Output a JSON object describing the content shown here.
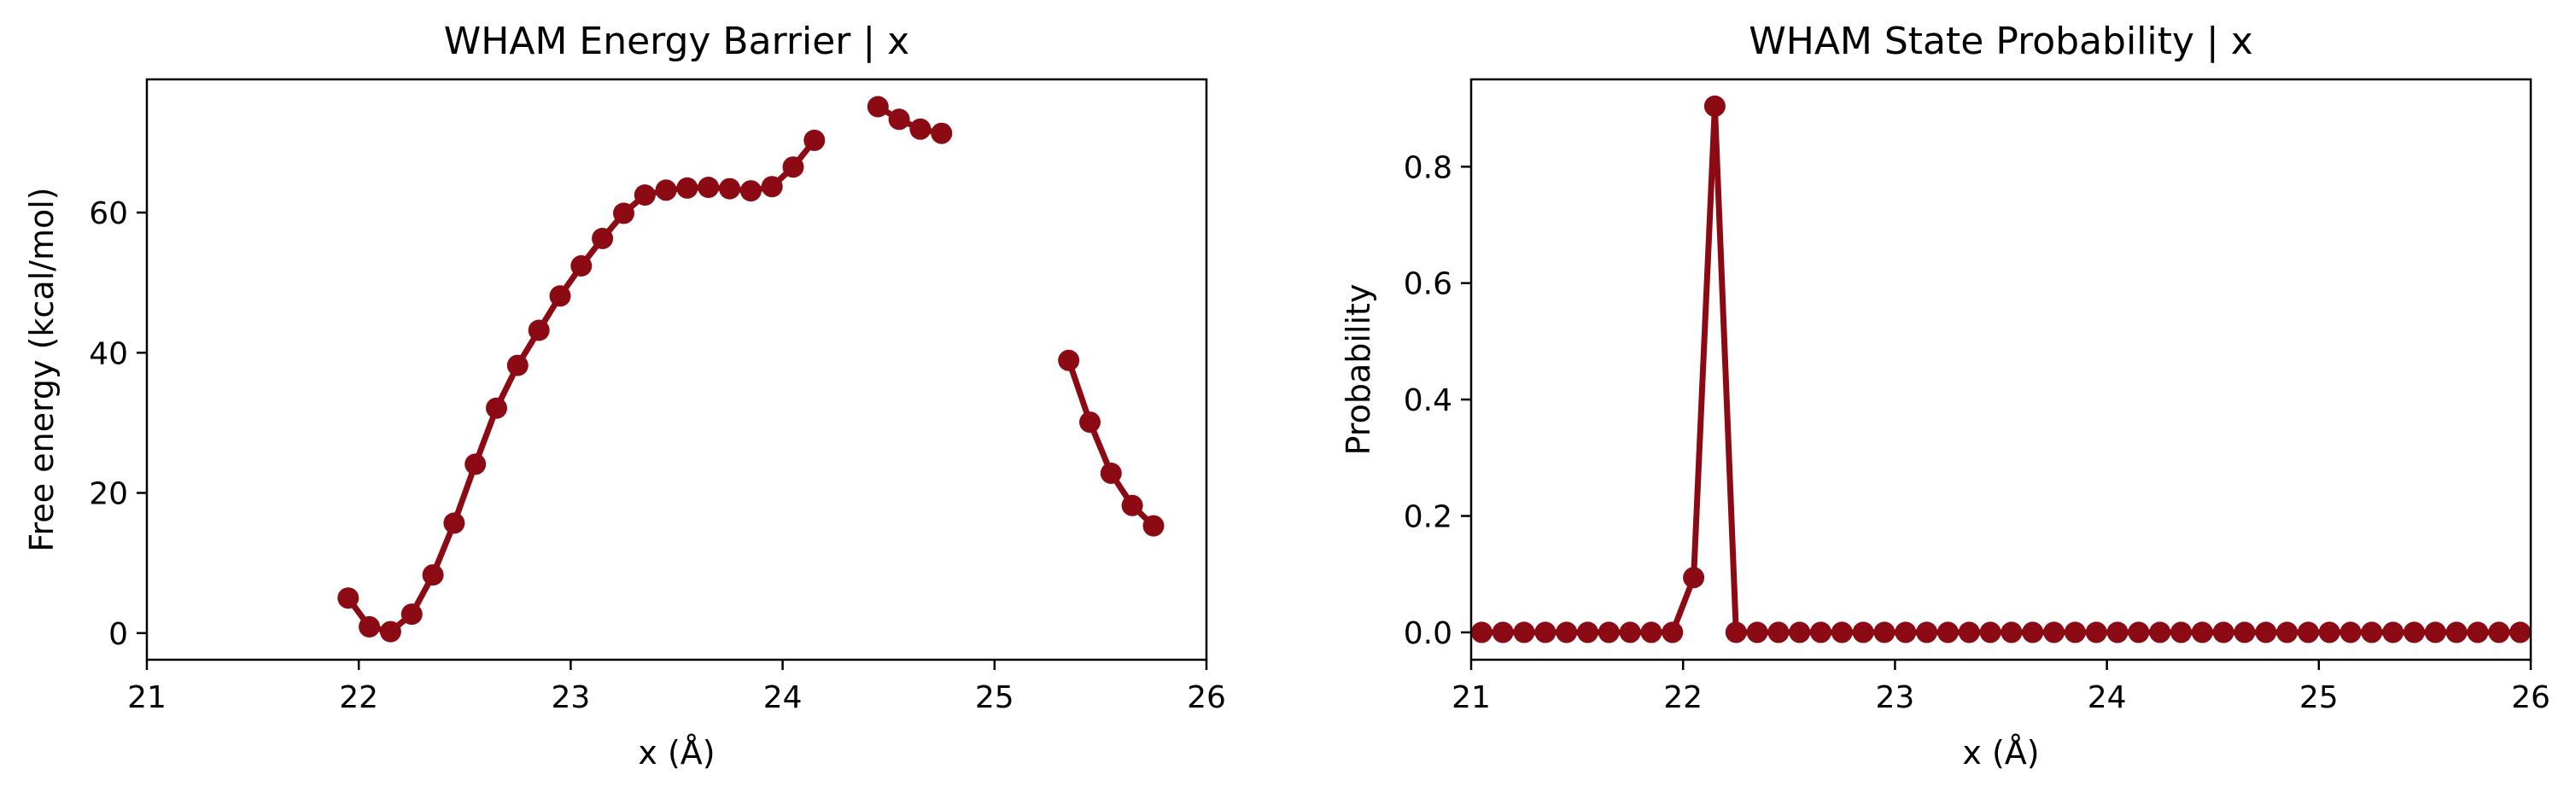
{
  "colors": {
    "series": "#8B0A13",
    "axes": "#000000",
    "background": "#ffffff"
  },
  "chart_data": [
    {
      "type": "line",
      "title": "WHAM Energy Barrier | x",
      "xlabel": "x (Å)",
      "ylabel": "Free energy (kcal/mol)",
      "xlim": [
        21,
        26
      ],
      "ylim": [
        -3.8,
        79
      ],
      "xticks": [
        21,
        22,
        23,
        24,
        25,
        26
      ],
      "yticks": [
        0,
        20,
        40,
        60
      ],
      "grid": false,
      "series": [
        {
          "name": "free energy",
          "marker": "circle",
          "x": [
            21.95,
            22.05,
            22.15,
            22.25,
            22.35,
            22.45,
            22.55,
            22.65,
            22.75,
            22.85,
            22.95,
            23.05,
            23.15,
            23.25,
            23.35,
            23.45,
            23.55,
            23.65,
            23.75,
            23.85,
            23.95,
            24.05,
            24.15,
            24.25,
            24.35,
            24.45,
            24.55,
            24.65,
            24.75,
            24.85,
            24.95,
            25.05,
            25.15,
            25.25,
            25.35,
            25.45,
            25.55,
            25.65,
            25.75
          ],
          "y": [
            5.0,
            0.9,
            0.2,
            2.7,
            8.3,
            15.7,
            24.1,
            32.1,
            38.2,
            43.2,
            48.1,
            52.4,
            56.3,
            59.9,
            62.5,
            63.2,
            63.5,
            63.6,
            63.4,
            63.1,
            63.7,
            66.5,
            70.3,
            null,
            null,
            75.1,
            73.3,
            71.9,
            71.3,
            null,
            null,
            null,
            null,
            null,
            38.9,
            30.1,
            22.8,
            18.2,
            15.3
          ]
        }
      ]
    },
    {
      "type": "line",
      "title": "WHAM State Probability | x",
      "xlabel": "x (Å)",
      "ylabel": "Probability",
      "xlim": [
        21,
        26
      ],
      "ylim": [
        -0.047,
        0.95
      ],
      "xticks": [
        21,
        22,
        23,
        24,
        25,
        26
      ],
      "yticks": [
        0.0,
        0.2,
        0.4,
        0.6,
        0.8
      ],
      "ytick_format": "0.0",
      "grid": false,
      "series": [
        {
          "name": "probability",
          "marker": "circle",
          "x": [
            21.05,
            21.15,
            21.25,
            21.35,
            21.45,
            21.55,
            21.65,
            21.75,
            21.85,
            21.95,
            22.05,
            22.15,
            22.25,
            22.35,
            22.45,
            22.55,
            22.65,
            22.75,
            22.85,
            22.95,
            23.05,
            23.15,
            23.25,
            23.35,
            23.45,
            23.55,
            23.65,
            23.75,
            23.85,
            23.95,
            24.05,
            24.15,
            24.25,
            24.35,
            24.45,
            24.55,
            24.65,
            24.75,
            24.85,
            24.95,
            25.05,
            25.15,
            25.25,
            25.35,
            25.45,
            25.55,
            25.65,
            25.75,
            25.85,
            25.95
          ],
          "y": [
            0,
            0,
            0,
            0,
            0,
            0,
            0,
            0,
            0,
            0,
            0.094,
            0.904,
            0,
            0,
            0,
            0,
            0,
            0,
            0,
            0,
            0,
            0,
            0,
            0,
            0,
            0,
            0,
            0,
            0,
            0,
            0,
            0,
            0,
            0,
            0,
            0,
            0,
            0,
            0,
            0,
            0,
            0,
            0,
            0,
            0,
            0,
            0,
            0,
            0,
            0
          ]
        }
      ]
    }
  ]
}
